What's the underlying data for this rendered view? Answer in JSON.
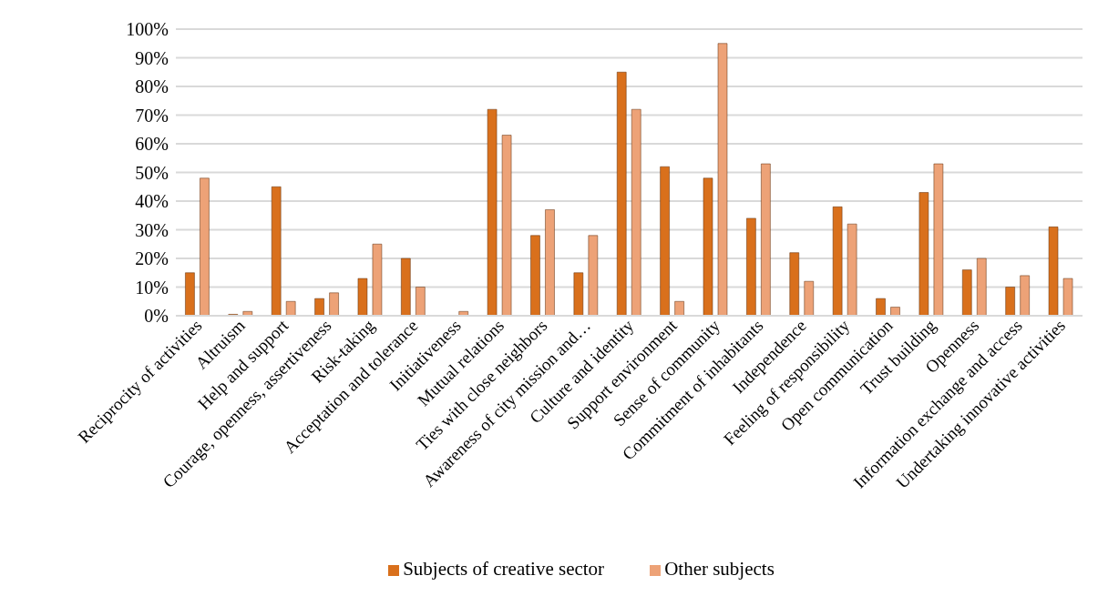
{
  "chart_data": {
    "type": "bar",
    "categories": [
      "Reciprocity of activities",
      "Altruism",
      "Help and support",
      "Courage, openness, assertiveness",
      "Risk-taking",
      "Acceptation and tolerance",
      "Initiativeness",
      "Mutual relations",
      "Ties with close neighbors",
      "Awareness of city mission and…",
      "Culture and identity",
      "Support environment",
      "Sense of community",
      "Commitment of inhabitants",
      "Independence",
      "Feeling of responsibility",
      "Open communication",
      "Trust building",
      "Openness",
      "Information exchange and access",
      "Undertaking innovative activities"
    ],
    "series": [
      {
        "name": "Subjects of creative sector",
        "color": "#d9701c",
        "values": [
          15,
          0.5,
          45,
          6,
          13,
          20,
          0,
          72,
          28,
          15,
          85,
          52,
          48,
          34,
          22,
          38,
          6,
          43,
          16,
          10,
          31
        ]
      },
      {
        "name": "Other subjects",
        "color": "#eda277",
        "values": [
          48,
          1.5,
          5,
          8,
          25,
          10,
          1.5,
          63,
          37,
          28,
          72,
          5,
          95,
          53,
          12,
          32,
          3,
          53,
          20,
          14,
          13
        ]
      }
    ],
    "ylim": [
      0,
      100
    ],
    "yticks": [
      {
        "value": 0,
        "label": "0%"
      },
      {
        "value": 10,
        "label": "10%"
      },
      {
        "value": 20,
        "label": "20%"
      },
      {
        "value": 30,
        "label": "30%"
      },
      {
        "value": 40,
        "label": "40%"
      },
      {
        "value": 50,
        "label": "50%"
      },
      {
        "value": 60,
        "label": "60%"
      },
      {
        "value": 70,
        "label": "70%"
      },
      {
        "value": 80,
        "label": "80%"
      },
      {
        "value": 90,
        "label": "90%"
      },
      {
        "value": 100,
        "label": "100%"
      }
    ],
    "grid": "y",
    "legend": "bottom"
  }
}
